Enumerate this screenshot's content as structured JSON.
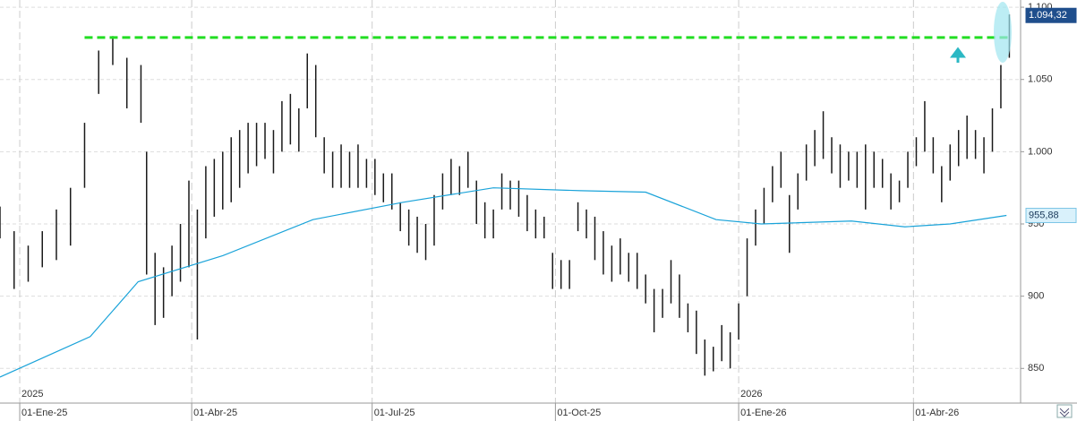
{
  "chart_data": {
    "type": "ohlc",
    "ylim": [
      826,
      1105
    ],
    "yticks": [
      {
        "value": 1100,
        "label": "1.100"
      },
      {
        "value": 1050,
        "label": "1.050"
      },
      {
        "value": 1000,
        "label": "1.000"
      },
      950,
      900,
      850
    ],
    "xlim": [
      0,
      362
    ],
    "xticks": [
      {
        "value": 7,
        "label": "01-Ene-25"
      },
      {
        "value": 68,
        "label": "01-Abr-25"
      },
      {
        "value": 132,
        "label": "01-Jul-25"
      },
      {
        "value": 197,
        "label": "01-Oct-25"
      },
      {
        "value": 262,
        "label": "01-Ene-26"
      },
      {
        "value": 324,
        "label": "01-Abr-26"
      }
    ],
    "year_labels": [
      {
        "value": 7,
        "label": "2025"
      },
      {
        "value": 262,
        "label": "2026"
      }
    ],
    "grid": true,
    "bar_color": "#1a1a1a",
    "x": [
      0,
      5,
      10,
      15,
      20,
      25,
      30,
      35,
      40,
      45,
      50,
      52,
      55,
      58,
      61,
      64,
      67,
      70,
      73,
      76,
      79,
      82,
      85,
      88,
      91,
      94,
      97,
      100,
      103,
      106,
      109,
      112,
      115,
      118,
      121,
      124,
      127,
      130,
      133,
      136,
      139,
      142,
      145,
      148,
      151,
      154,
      157,
      160,
      163,
      166,
      169,
      172,
      175,
      178,
      181,
      184,
      187,
      190,
      193,
      196,
      199,
      202,
      205,
      208,
      211,
      214,
      217,
      220,
      223,
      226,
      229,
      232,
      235,
      238,
      241,
      244,
      247,
      250,
      253,
      256,
      259,
      262,
      265,
      268,
      271,
      274,
      277,
      280,
      283,
      286,
      289,
      292,
      295,
      298,
      301,
      304,
      307,
      310,
      313,
      316,
      319,
      322,
      325,
      328,
      331,
      334,
      337,
      340,
      343,
      346,
      349,
      352,
      355,
      358
    ],
    "low": [
      940,
      905,
      910,
      920,
      925,
      935,
      975,
      1040,
      1060,
      1030,
      1020,
      915,
      880,
      885,
      900,
      910,
      920,
      870,
      940,
      955,
      960,
      965,
      975,
      985,
      990,
      995,
      985,
      1000,
      1005,
      1000,
      1030,
      1010,
      985,
      975,
      975,
      975,
      975,
      975,
      970,
      965,
      960,
      945,
      935,
      930,
      925,
      935,
      960,
      970,
      970,
      975,
      950,
      940,
      940,
      960,
      960,
      955,
      945,
      940,
      940,
      905,
      905,
      905,
      945,
      940,
      925,
      915,
      910,
      915,
      910,
      905,
      895,
      875,
      885,
      895,
      885,
      875,
      860,
      845,
      848,
      855,
      850,
      870,
      900,
      935,
      950,
      965,
      975,
      930,
      960,
      980,
      990,
      995,
      985,
      975,
      980,
      975,
      960,
      975,
      975,
      960,
      965,
      975,
      990,
      1000,
      985,
      965,
      980,
      990,
      995,
      995,
      985,
      1000,
      1030,
      1065
    ],
    "high": [
      962,
      945,
      935,
      945,
      960,
      975,
      1020,
      1070,
      1080,
      1065,
      1060,
      1000,
      930,
      920,
      935,
      950,
      980,
      960,
      990,
      995,
      1000,
      1010,
      1015,
      1020,
      1020,
      1020,
      1015,
      1035,
      1040,
      1030,
      1068,
      1060,
      1010,
      1000,
      1005,
      1000,
      1005,
      995,
      995,
      985,
      985,
      965,
      960,
      955,
      950,
      970,
      985,
      995,
      990,
      1000,
      980,
      965,
      960,
      985,
      980,
      980,
      970,
      960,
      955,
      930,
      925,
      925,
      965,
      960,
      955,
      945,
      935,
      940,
      930,
      930,
      915,
      905,
      905,
      925,
      915,
      895,
      890,
      870,
      865,
      880,
      875,
      895,
      940,
      960,
      975,
      990,
      1000,
      970,
      985,
      1005,
      1015,
      1028,
      1010,
      1005,
      1000,
      1000,
      1005,
      1000,
      995,
      985,
      980,
      1000,
      1010,
      1035,
      1010,
      990,
      1005,
      1015,
      1025,
      1015,
      1010,
      1030,
      1060,
      1095
    ],
    "moving_average": {
      "color": "#1aa3d9",
      "x": [
        0,
        32,
        49,
        79,
        111,
        143,
        175,
        206,
        229,
        254,
        270,
        302,
        321,
        337,
        357
      ],
      "values": [
        844,
        872,
        910,
        928,
        953,
        965,
        975,
        973,
        972,
        953,
        950,
        952,
        948,
        950,
        955.88
      ]
    },
    "resistance": {
      "value": 1079,
      "x": [
        30,
        358
      ],
      "color": "#22dd22"
    },
    "price_labels": [
      {
        "value": 1094.32,
        "label": "1.094,32",
        "color": "#1f4e8c"
      },
      {
        "value": 955.88,
        "label": "955,88",
        "color": "#d9f1fb"
      }
    ]
  }
}
